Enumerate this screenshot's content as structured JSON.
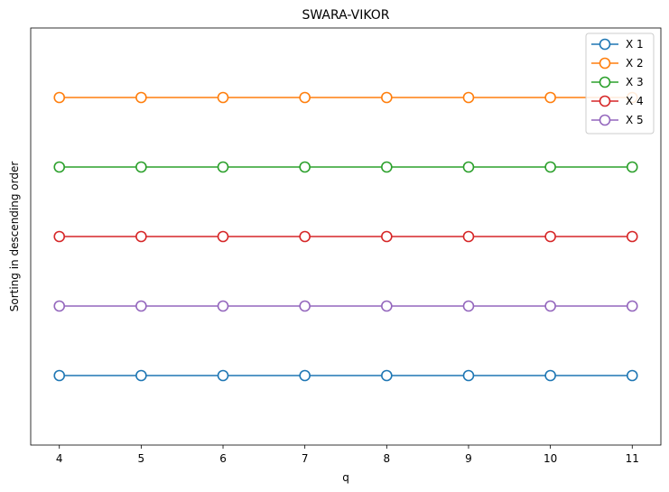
{
  "chart_data": {
    "type": "line",
    "title": "SWARA-VIKOR",
    "xlabel": "q",
    "ylabel": "Sorting in descending order",
    "x": [
      4,
      5,
      6,
      7,
      8,
      9,
      10,
      11
    ],
    "x_tick_labels": [
      "4",
      "5",
      "6",
      "7",
      "8",
      "9",
      "10",
      "11"
    ],
    "xlim": [
      3.65,
      11.35
    ],
    "ylim": [
      0,
      6
    ],
    "y_ticks_visible": false,
    "grid": false,
    "legend_position": "top-right",
    "marker": "open-circle",
    "series": [
      {
        "name": "X 1",
        "color": "#1f77b4",
        "values": [
          1,
          1,
          1,
          1,
          1,
          1,
          1,
          1
        ]
      },
      {
        "name": "X 2",
        "color": "#ff7f0e",
        "values": [
          5,
          5,
          5,
          5,
          5,
          5,
          5,
          5
        ]
      },
      {
        "name": "X 3",
        "color": "#2ca02c",
        "values": [
          4,
          4,
          4,
          4,
          4,
          4,
          4,
          4
        ]
      },
      {
        "name": "X 4",
        "color": "#d62728",
        "values": [
          3,
          3,
          3,
          3,
          3,
          3,
          3,
          3
        ]
      },
      {
        "name": "X 5",
        "color": "#9467bd",
        "values": [
          2,
          2,
          2,
          2,
          2,
          2,
          2,
          2
        ]
      }
    ]
  }
}
